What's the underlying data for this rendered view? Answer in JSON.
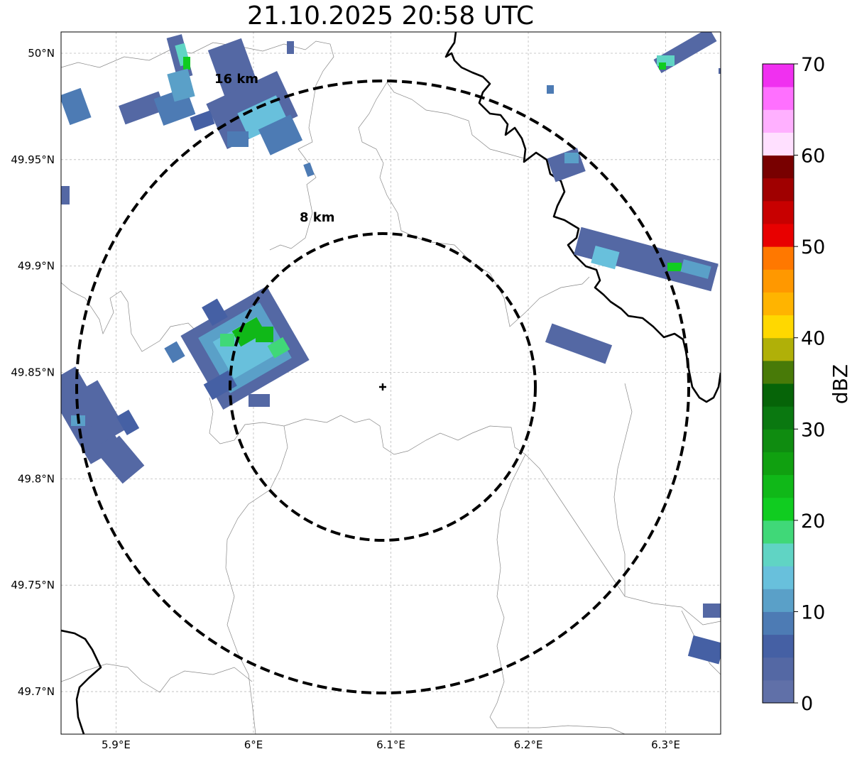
{
  "title": "21.10.2025 20:58 UTC",
  "map": {
    "lon_range": [
      5.86,
      6.34
    ],
    "lat_range": [
      49.68,
      50.01
    ],
    "lon_ticks": [
      {
        "v": 5.9,
        "label": "5.9°E"
      },
      {
        "v": 6.0,
        "label": "6°E"
      },
      {
        "v": 6.1,
        "label": "6.1°E"
      },
      {
        "v": 6.2,
        "label": "6.2°E"
      },
      {
        "v": 6.3,
        "label": "6.3°E"
      }
    ],
    "lat_ticks": [
      {
        "v": 50.0,
        "label": "50°N"
      },
      {
        "v": 49.95,
        "label": "49.95°N"
      },
      {
        "v": 49.9,
        "label": "49.9°N"
      },
      {
        "v": 49.85,
        "label": "49.85°N"
      },
      {
        "v": 49.8,
        "label": "49.8°N"
      },
      {
        "v": 49.75,
        "label": "49.75°N"
      },
      {
        "v": 49.7,
        "label": "49.7°N"
      }
    ],
    "radar_center": {
      "lon": 6.095,
      "lat": 49.843
    },
    "range_rings": [
      {
        "radius_km": 8,
        "label": "8 km"
      },
      {
        "radius_km": 16,
        "label": "16 km"
      }
    ]
  },
  "colorbar": {
    "label": "dBZ",
    "min": 0,
    "max": 70,
    "ticks": [
      {
        "v": 0,
        "label": "0"
      },
      {
        "v": 10,
        "label": "10"
      },
      {
        "v": 20,
        "label": "20"
      },
      {
        "v": 30,
        "label": "30"
      },
      {
        "v": 40,
        "label": "40"
      },
      {
        "v": 50,
        "label": "50"
      },
      {
        "v": 60,
        "label": "60"
      },
      {
        "v": 70,
        "label": "70"
      }
    ],
    "colors": [
      "#6070a8",
      "#5468a4",
      "#4560a4",
      "#4d7bb4",
      "#5aa0c8",
      "#68c0dc",
      "#60d4c4",
      "#40d878",
      "#10cc20",
      "#10b818",
      "#10a010",
      "#0f8c10",
      "#0a7810",
      "#066408",
      "#487a08",
      "#b0b008",
      "#ffd800",
      "#ffb400",
      "#ff9800",
      "#ff7800",
      "#e80000",
      "#c80000",
      "#a00000",
      "#780000",
      "#ffe0ff",
      "#ffb0ff",
      "#ff70ff",
      "#f030f0"
    ]
  }
}
